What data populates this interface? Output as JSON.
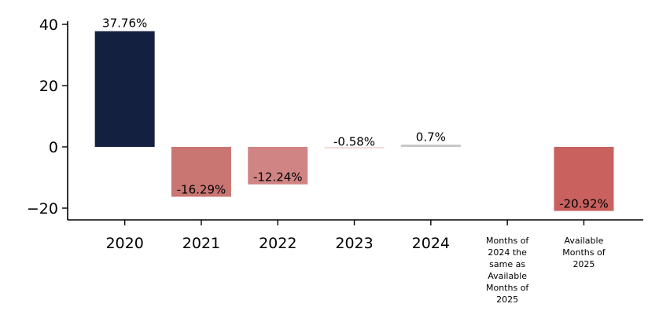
{
  "chart_data": {
    "type": "bar",
    "title": "",
    "xlabel": "",
    "ylabel": "",
    "ylim": [
      -24,
      41
    ],
    "yticks": [
      40,
      20,
      0,
      -20
    ],
    "grid": false,
    "categories": [
      "2020",
      "2021",
      "2022",
      "2023",
      "2024",
      "Months of 2024 the same as Available Months of 2025",
      "Available Months of 2025"
    ],
    "values": [
      37.76,
      -16.29,
      -12.24,
      -0.58,
      0.7,
      null,
      -20.92
    ],
    "data_labels": [
      "37.76%",
      "-16.29%",
      "-12.24%",
      "-0.58%",
      "0.7%",
      "",
      "-20.92%"
    ],
    "bar_colors": [
      "#14203f",
      "#c97672",
      "#d08584",
      "#f3dcdb",
      "#c4c4c4",
      "#ffffff",
      "#c9625f"
    ]
  }
}
